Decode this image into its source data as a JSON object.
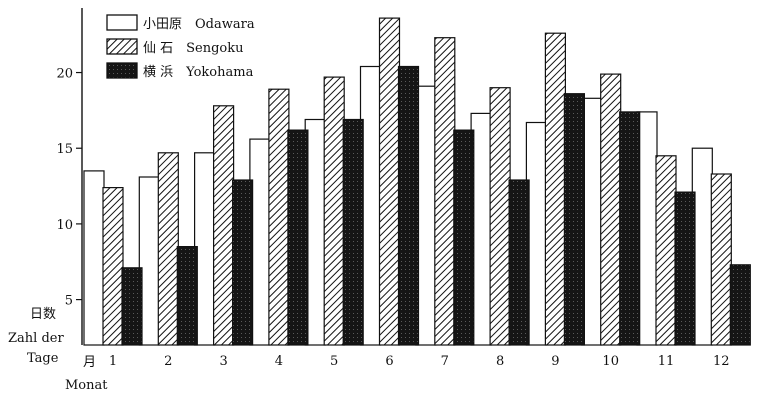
{
  "chart_data": {
    "type": "bar",
    "categories": [
      "1",
      "2",
      "3",
      "4",
      "5",
      "6",
      "7",
      "8",
      "9",
      "10",
      "11",
      "12"
    ],
    "series": [
      {
        "name": "小田原　Odawara",
        "pattern": "white",
        "values": [
          13.5,
          13.1,
          14.7,
          15.6,
          16.9,
          20.4,
          19.1,
          17.3,
          16.7,
          18.3,
          17.4,
          15.0
        ]
      },
      {
        "name": "仙 石　Sengoku",
        "pattern": "hatched",
        "values": [
          12.4,
          14.7,
          17.8,
          18.9,
          19.7,
          23.6,
          22.3,
          19.0,
          22.6,
          19.9,
          14.5,
          13.3
        ]
      },
      {
        "name": "横 浜　Yokohama",
        "pattern": "black",
        "values": [
          7.1,
          8.5,
          12.9,
          16.2,
          16.9,
          20.4,
          16.2,
          12.9,
          18.6,
          17.4,
          12.1,
          7.3
        ]
      }
    ],
    "ylabel": [
      "日数",
      "Zahl der",
      "Tage"
    ],
    "xlabel": [
      "月",
      "Monat"
    ],
    "yticks": [
      5,
      10,
      15,
      20
    ],
    "ylim": [
      2,
      24
    ],
    "legend_position": "top-left",
    "grid": false,
    "colors": {
      "white": "#ffffff",
      "hatch": "#111111",
      "black": "#111111"
    }
  }
}
